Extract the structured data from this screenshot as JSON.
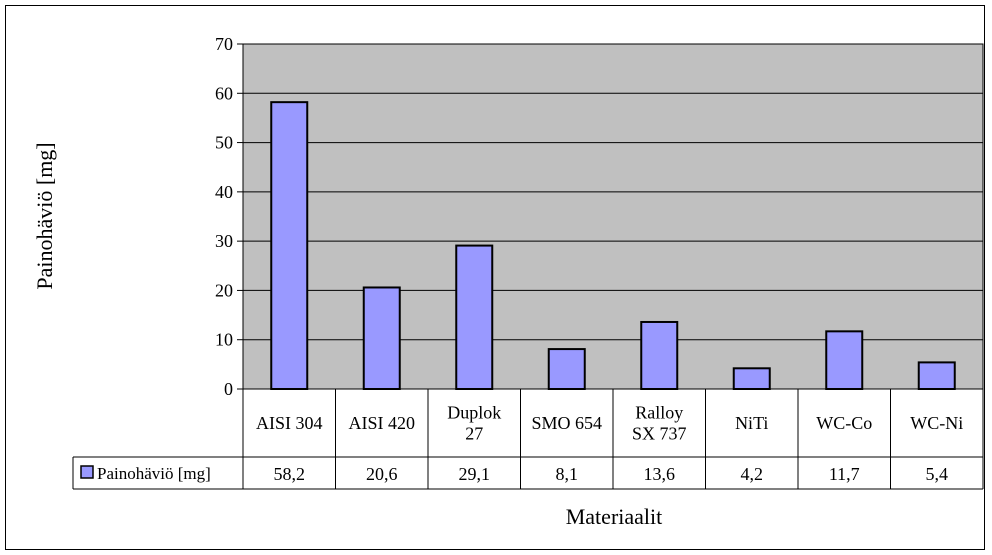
{
  "chart_data": {
    "type": "bar",
    "title": "",
    "xlabel": "Materiaalit",
    "ylabel": "Painohäviö [mg]",
    "ylim": [
      0,
      70
    ],
    "yticks": [
      "0",
      "10",
      "20",
      "30",
      "40",
      "50",
      "60",
      "70"
    ],
    "grid": true,
    "categories": [
      [
        "AISI 304"
      ],
      [
        "AISI 420"
      ],
      [
        "Duplok",
        "27"
      ],
      [
        "SMO 654"
      ],
      [
        "Ralloy",
        "SX 737"
      ],
      [
        "NiTi"
      ],
      [
        "WC-Co"
      ],
      [
        "WC-Ni"
      ]
    ],
    "series": [
      {
        "name": "Painohäviö [mg]",
        "values": [
          58.2,
          20.6,
          29.1,
          8.1,
          13.6,
          4.2,
          11.7,
          5.4
        ],
        "value_labels": [
          "58,2",
          "20,6",
          "29,1",
          "8,1",
          "13,6",
          "4,2",
          "11,7",
          "5,4"
        ]
      }
    ],
    "legend_placement": "data-table",
    "colors": {
      "bar": "#9999ff",
      "plot_area": "#c0c0c0",
      "border": "#000000"
    }
  }
}
